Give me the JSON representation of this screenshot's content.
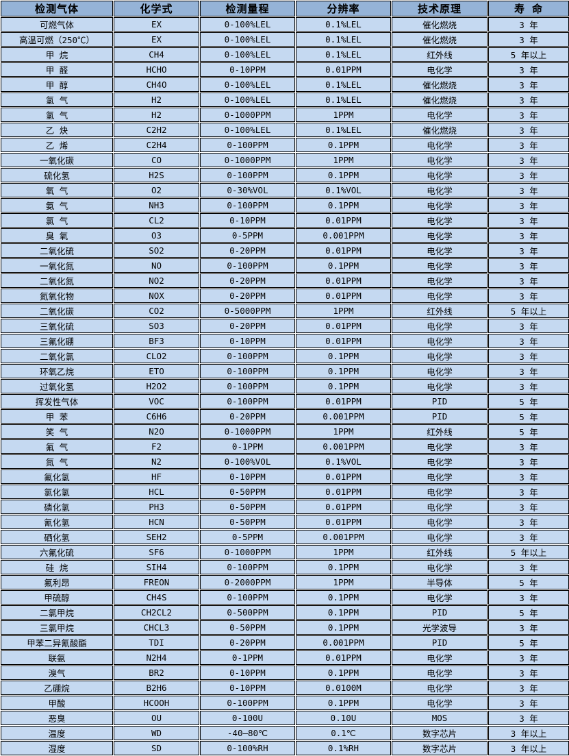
{
  "colors": {
    "header_bg": "#95B3D7",
    "row_bg": "#C5D9F1",
    "border": "#000000",
    "page_bg": "#FFFFFF",
    "text": "#000000"
  },
  "table": {
    "headers": [
      "检测气体",
      "化学式",
      "检测量程",
      "分辨率",
      "技术原理",
      "寿 命"
    ],
    "rows": [
      [
        "可燃气体",
        "EX",
        "0-100%LEL",
        "0.1%LEL",
        "催化燃烧",
        "3 年"
      ],
      [
        "高温可燃（250℃）",
        "EX",
        "0-100%LEL",
        "0.1%LEL",
        "催化燃烧",
        "3 年"
      ],
      [
        "甲 烷",
        "CH4",
        "0-100%LEL",
        "0.1%LEL",
        "红外线",
        "5 年以上"
      ],
      [
        "甲 醛",
        "HCHO",
        "0-10PPM",
        "0.01PPM",
        "电化学",
        "3 年"
      ],
      [
        "甲 醇",
        "CH4O",
        "0-100%LEL",
        "0.1%LEL",
        "催化燃烧",
        "3 年"
      ],
      [
        "氢 气",
        "H2",
        "0-100%LEL",
        "0.1%LEL",
        "催化燃烧",
        "3 年"
      ],
      [
        "氢 气",
        "H2",
        "0-1000PPM",
        "1PPM",
        "电化学",
        "3 年"
      ],
      [
        "乙 炔",
        "C2H2",
        "0-100%LEL",
        "0.1%LEL",
        "催化燃烧",
        "3 年"
      ],
      [
        "乙 烯",
        "C2H4",
        "0-100PPM",
        "0.1PPM",
        "电化学",
        "3 年"
      ],
      [
        "一氧化碳",
        "CO",
        "0-1000PPM",
        "1PPM",
        "电化学",
        "3 年"
      ],
      [
        "硫化氢",
        "H2S",
        "0-100PPM",
        "0.1PPM",
        "电化学",
        "3 年"
      ],
      [
        "氧 气",
        "O2",
        "0-30%VOL",
        "0.1%VOL",
        "电化学",
        "3 年"
      ],
      [
        "氨 气",
        "NH3",
        "0-100PPM",
        "0.1PPM",
        "电化学",
        "3 年"
      ],
      [
        "氯 气",
        "CL2",
        "0-10PPM",
        "0.01PPM",
        "电化学",
        "3 年"
      ],
      [
        "臭 氧",
        "O3",
        "0-5PPM",
        "0.001PPM",
        "电化学",
        "3 年"
      ],
      [
        "二氧化硫",
        "SO2",
        "0-20PPM",
        "0.01PPM",
        "电化学",
        "3 年"
      ],
      [
        "一氧化氮",
        "NO",
        "0-100PPM",
        "0.1PPM",
        "电化学",
        "3 年"
      ],
      [
        "二氧化氮",
        "NO2",
        "0-20PPM",
        "0.01PPM",
        "电化学",
        "3 年"
      ],
      [
        "氮氧化物",
        "NOX",
        "0-20PPM",
        "0.01PPM",
        "电化学",
        "3 年"
      ],
      [
        "二氧化碳",
        "CO2",
        "0-5000PPM",
        "1PPM",
        "红外线",
        "5 年以上"
      ],
      [
        "三氧化硫",
        "SO3",
        "0-20PPM",
        "0.01PPM",
        "电化学",
        "3 年"
      ],
      [
        "三氟化硼",
        "BF3",
        "0-10PPM",
        "0.01PPM",
        "电化学",
        "3 年"
      ],
      [
        "二氧化氯",
        "CLO2",
        "0-100PPM",
        "0.1PPM",
        "电化学",
        "3 年"
      ],
      [
        "环氧乙烷",
        "ETO",
        "0-100PPM",
        "0.1PPM",
        "电化学",
        "3 年"
      ],
      [
        "过氧化氢",
        "H2O2",
        "0-100PPM",
        "0.1PPM",
        "电化学",
        "3 年"
      ],
      [
        "挥发性气体",
        "VOC",
        "0-100PPM",
        "0.01PPM",
        "PID",
        "5 年"
      ],
      [
        "甲 苯",
        "C6H6",
        "0-20PPM",
        "0.001PPM",
        "PID",
        "5 年"
      ],
      [
        "笑 气",
        "N2O",
        "0-1000PPM",
        "1PPM",
        "红外线",
        "5 年"
      ],
      [
        "氟 气",
        "F2",
        "0-1PPM",
        "0.001PPM",
        "电化学",
        "3 年"
      ],
      [
        "氮 气",
        "N2",
        "0-100%VOL",
        "0.1%VOL",
        "电化学",
        "3 年"
      ],
      [
        "氟化氢",
        "HF",
        "0-10PPM",
        "0.01PPM",
        "电化学",
        "3 年"
      ],
      [
        "氯化氢",
        "HCL",
        "0-50PPM",
        "0.01PPM",
        "电化学",
        "3 年"
      ],
      [
        "磷化氢",
        "PH3",
        "0-50PPM",
        "0.01PPM",
        "电化学",
        "3 年"
      ],
      [
        "氰化氢",
        "HCN",
        "0-50PPM",
        "0.01PPM",
        "电化学",
        "3 年"
      ],
      [
        "硒化氢",
        "SEH2",
        "0-5PPM",
        "0.001PPM",
        "电化学",
        "3 年"
      ],
      [
        "六氟化硫",
        "SF6",
        "0-1000PPM",
        "1PPM",
        "红外线",
        "5 年以上"
      ],
      [
        "硅 烷",
        "SIH4",
        "0-100PPM",
        "0.1PPM",
        "电化学",
        "3 年"
      ],
      [
        "氟利昂",
        "FREON",
        "0-2000PPM",
        "1PPM",
        "半导体",
        "5 年"
      ],
      [
        "甲硫醇",
        "CH4S",
        "0-100PPM",
        "0.1PPM",
        "电化学",
        "3 年"
      ],
      [
        "二氯甲烷",
        "CH2CL2",
        "0-500PPM",
        "0.1PPM",
        "PID",
        "5 年"
      ],
      [
        "三氯甲烷",
        "CHCL3",
        "0-50PPM",
        "0.1PPM",
        "光学波导",
        "3 年"
      ],
      [
        "甲苯二异氰酸酯",
        "TDI",
        "0-20PPM",
        "0.001PPM",
        "PID",
        "5 年"
      ],
      [
        "联氨",
        "N2H4",
        "0-1PPM",
        "0.01PPM",
        "电化学",
        "3 年"
      ],
      [
        "溴气",
        "BR2",
        "0-10PPM",
        "0.1PPM",
        "电化学",
        "3 年"
      ],
      [
        "乙硼烷",
        "B2H6",
        "0-10PPM",
        "0.0100M",
        "电化学",
        "3 年"
      ],
      [
        "甲酸",
        "HCOOH",
        "0-100PPM",
        "0.1PPM",
        "电化学",
        "3 年"
      ],
      [
        "恶臭",
        "OU",
        "0-100U",
        "0.10U",
        "MOS",
        "3 年"
      ],
      [
        "温度",
        "WD",
        "-40—80℃",
        "0.1℃",
        "数字芯片",
        "3 年以上"
      ],
      [
        "湿度",
        "SD",
        "0-100%RH",
        "0.1%RH",
        "数字芯片",
        "3 年以上"
      ]
    ]
  }
}
